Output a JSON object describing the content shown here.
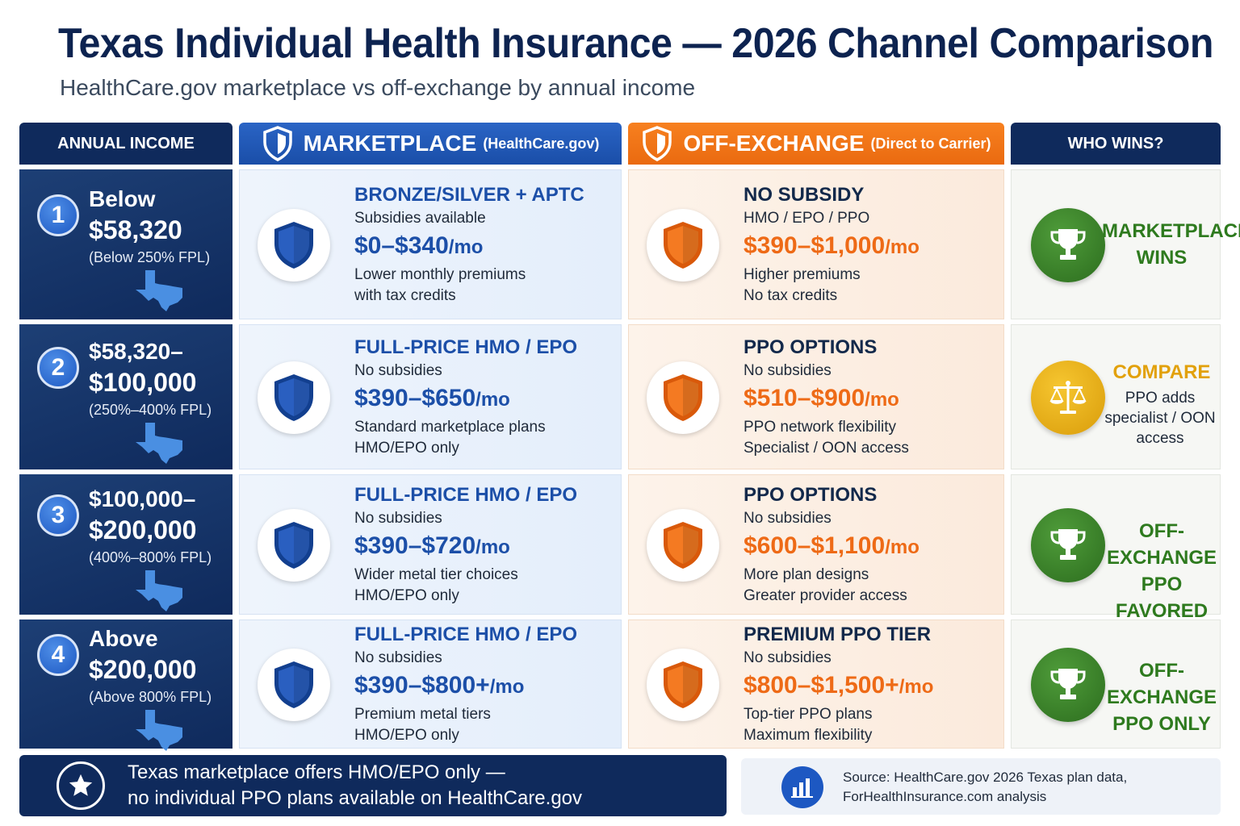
{
  "header": {
    "title": "Texas Individual Health Insurance — 2026 Channel Comparison",
    "subtitle": "HealthCare.gov marketplace vs off-exchange by annual income"
  },
  "columns": {
    "income": "ANNUAL INCOME",
    "marketplace": "MARKETPLACE",
    "marketplace_note": "(HealthCare.gov)",
    "off_exchange": "OFF-EXCHANGE",
    "off_exchange_note": "(Direct to Carrier)",
    "who_wins": "WHO WINS?"
  },
  "colors": {
    "navy": "#0f2a5c",
    "marketplace_blue": "#1c4fa8",
    "off_exchange_orange": "#ee6a16",
    "win_green": "#2e7a1e",
    "compare_gold": "#e2a10b"
  },
  "rows": [
    {
      "number": "1",
      "income_line1": "Below",
      "income_line2": "$58,320",
      "fpl": "(Below 250% FPL)",
      "marketplace": {
        "title": "BRONZE/SILVER + APTC",
        "subtitle": "Subsidies available",
        "price": "$0–$340",
        "price_unit": "/mo",
        "note1": "Lower monthly premiums",
        "note2": "with tax credits"
      },
      "off_exchange": {
        "title": "NO SUBSIDY",
        "subtitle": "HMO / EPO / PPO",
        "price": "$390–$1,000",
        "price_unit": "/mo",
        "note1": "Higher premiums",
        "note2": "No tax credits"
      },
      "winner": {
        "icon": "trophy-icon",
        "line1": "MARKETPLACE",
        "line2": "WINS",
        "sub": ""
      }
    },
    {
      "number": "2",
      "income_line1": "$58,320–",
      "income_line2": "$100,000",
      "fpl": "(250%–400% FPL)",
      "marketplace": {
        "title": "FULL-PRICE HMO / EPO",
        "subtitle": "No subsidies",
        "price": "$390–$650",
        "price_unit": "/mo",
        "note1": "Standard marketplace plans",
        "note2": "HMO/EPO only"
      },
      "off_exchange": {
        "title": "PPO OPTIONS",
        "subtitle": "No subsidies",
        "price": "$510–$900",
        "price_unit": "/mo",
        "note1": "PPO network flexibility",
        "note2": "Specialist / OON access"
      },
      "winner": {
        "icon": "scales-icon",
        "line1": "COMPARE",
        "line2": "",
        "sub": "PPO adds specialist / OON access"
      }
    },
    {
      "number": "3",
      "income_line1": "$100,000–",
      "income_line2": "$200,000",
      "fpl": "(400%–800% FPL)",
      "marketplace": {
        "title": "FULL-PRICE HMO / EPO",
        "subtitle": "No subsidies",
        "price": "$390–$720",
        "price_unit": "/mo",
        "note1": "Wider metal tier choices",
        "note2": "HMO/EPO only"
      },
      "off_exchange": {
        "title": "PPO OPTIONS",
        "subtitle": "No subsidies",
        "price": "$600–$1,100",
        "price_unit": "/mo",
        "note1": "More plan designs",
        "note2": "Greater provider access"
      },
      "winner": {
        "icon": "trophy-icon",
        "line1": "OFF-EXCHANGE",
        "line2": "PPO FAVORED",
        "sub": ""
      }
    },
    {
      "number": "4",
      "income_line1": "Above",
      "income_line2": "$200,000",
      "fpl": "(Above 800% FPL)",
      "marketplace": {
        "title": "FULL-PRICE HMO / EPO",
        "subtitle": "No subsidies",
        "price": "$390–$800+",
        "price_unit": "/mo",
        "note1": "Premium metal tiers",
        "note2": "HMO/EPO only"
      },
      "off_exchange": {
        "title": "PREMIUM PPO TIER",
        "subtitle": "No subsidies",
        "price": "$800–$1,500+",
        "price_unit": "/mo",
        "note1": "Top-tier PPO plans",
        "note2": "Maximum flexibility"
      },
      "winner": {
        "icon": "trophy-icon",
        "line1": "OFF-EXCHANGE",
        "line2": "PPO ONLY",
        "sub": ""
      }
    }
  ],
  "footer": {
    "note_line1": "Texas marketplace offers HMO/EPO only —",
    "note_line2": "no individual PPO plans available on HealthCare.gov",
    "source_line1": "Source: HealthCare.gov 2026 Texas plan data,",
    "source_line2": "ForHealthInsurance.com analysis"
  }
}
